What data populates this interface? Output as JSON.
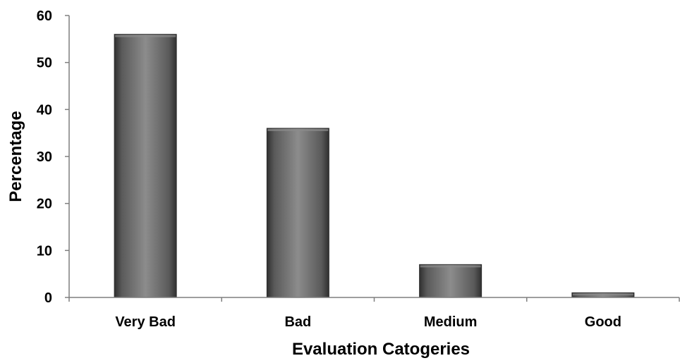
{
  "chart_data": {
    "type": "bar",
    "title": "",
    "xlabel": "Evaluation Catogeries",
    "ylabel": "Percentage",
    "categories": [
      "Very Bad",
      "Bad",
      "Medium",
      "Good"
    ],
    "values": [
      56,
      36,
      7,
      1
    ],
    "ylim": [
      0,
      60
    ],
    "yticks": [
      "0",
      "10",
      "20",
      "30",
      "40",
      "50",
      "60"
    ],
    "grid": false,
    "legend": "none",
    "colors": {
      "bar_fill": "#5a5a5a",
      "bar_highlight": "#8c8c8c",
      "bar_shadow": "#2f2f2f",
      "axis": "#7f7f7f",
      "text": "#000000"
    }
  }
}
